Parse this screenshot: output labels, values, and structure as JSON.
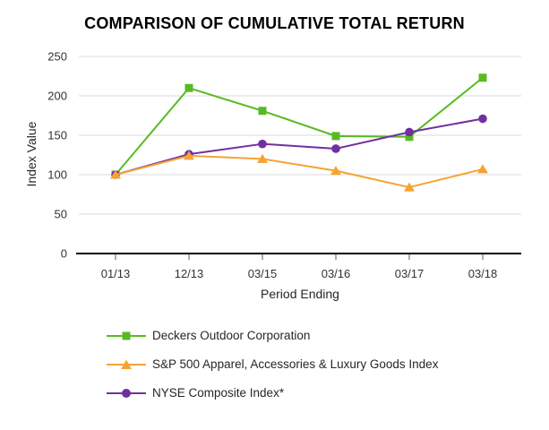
{
  "title": "COMPARISON OF CUMULATIVE TOTAL RETURN",
  "chart_data": {
    "type": "line",
    "title": "COMPARISON OF CUMULATIVE TOTAL RETURN",
    "xlabel": "Period Ending",
    "ylabel": "Index Value",
    "categories": [
      "01/13",
      "12/13",
      "03/15",
      "03/16",
      "03/17",
      "03/18"
    ],
    "yticks": [
      0,
      50,
      100,
      150,
      200,
      250
    ],
    "ylim": [
      0,
      250
    ],
    "grid": true,
    "legend_position": "bottom",
    "axis_color": "#000000",
    "gridline_color": "#DBDBDB",
    "tick_color": "#595959",
    "series": [
      {
        "name": "Deckers Outdoor Corporation",
        "marker": "square",
        "color": "#58BA23",
        "values": [
          100,
          210,
          181,
          149,
          148,
          223
        ]
      },
      {
        "name": "S&P 500 Apparel, Accessories & Luxury Goods Index",
        "marker": "triangle",
        "color": "#F5A333",
        "values": [
          100,
          124,
          120,
          105,
          84,
          107
        ]
      },
      {
        "name": "NYSE Composite Index*",
        "marker": "circle",
        "color": "#7030A0",
        "values": [
          100,
          126,
          139,
          133,
          154,
          171
        ]
      }
    ]
  }
}
